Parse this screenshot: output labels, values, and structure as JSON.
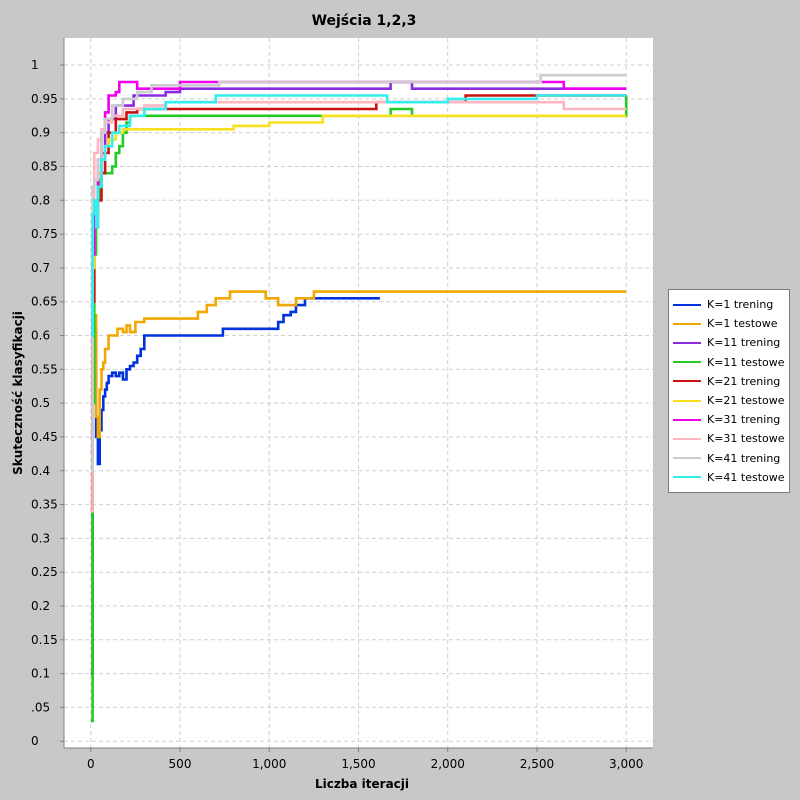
{
  "chart_data": {
    "type": "line",
    "title": "Wejścia 1,2,3",
    "xlabel": "Liczba iteracji",
    "ylabel": "Skuteczność klasyfikacji",
    "xlim": [
      -150,
      3150
    ],
    "ylim": [
      -0.01,
      1.04
    ],
    "x_ticks": [
      0,
      500,
      1000,
      1500,
      2000,
      2500,
      3000
    ],
    "x_tick_labels": [
      "0",
      "500",
      "1,000",
      "1,500",
      "2,000",
      "2,500",
      "3,000"
    ],
    "y_ticks": [
      0,
      0.05,
      0.1,
      0.15,
      0.2,
      0.25,
      0.3,
      0.35,
      0.4,
      0.45,
      0.5,
      0.55,
      0.6,
      0.65,
      0.7,
      0.75,
      0.8,
      0.85,
      0.9,
      0.95,
      1
    ],
    "y_tick_labels": [
      "0",
      ".05",
      "0.1",
      "0.15",
      "0.2",
      "0.25",
      "0.3",
      "0.35",
      "0.4",
      "0.45",
      "0.5",
      "0.55",
      "0.6",
      "0.65",
      "0.7",
      "0.75",
      "0.8",
      "0.85",
      "0.9",
      "0.95",
      "1"
    ],
    "grid": true,
    "legend_position": "right",
    "series": [
      {
        "name": "K=1 trening",
        "color": "#0033dd",
        "x": [
          0,
          10,
          20,
          30,
          40,
          50,
          60,
          70,
          80,
          90,
          100,
          120,
          140,
          160,
          180,
          200,
          220,
          240,
          260,
          280,
          300,
          320,
          740,
          1050,
          1080,
          1120,
          1150,
          1200,
          1250,
          1620
        ],
        "y": [
          0.1,
          0.55,
          0.61,
          0.45,
          0.41,
          0.46,
          0.49,
          0.51,
          0.52,
          0.53,
          0.54,
          0.545,
          0.54,
          0.545,
          0.535,
          0.55,
          0.555,
          0.56,
          0.57,
          0.58,
          0.6,
          0.6,
          0.61,
          0.62,
          0.63,
          0.635,
          0.645,
          0.655,
          0.655,
          0.655
        ]
      },
      {
        "name": "K=1 testowe",
        "color": "#f0a800",
        "x": [
          0,
          10,
          20,
          30,
          40,
          50,
          60,
          70,
          80,
          100,
          120,
          150,
          180,
          200,
          220,
          250,
          300,
          600,
          650,
          700,
          780,
          980,
          1050,
          1100,
          1150,
          1250,
          1300,
          3000
        ],
        "y": [
          0.35,
          0.55,
          0.63,
          0.48,
          0.45,
          0.52,
          0.55,
          0.56,
          0.58,
          0.6,
          0.6,
          0.61,
          0.605,
          0.615,
          0.605,
          0.62,
          0.625,
          0.635,
          0.645,
          0.655,
          0.665,
          0.655,
          0.645,
          0.645,
          0.655,
          0.665,
          0.665,
          0.665
        ]
      },
      {
        "name": "K=11 trening",
        "color": "#8a2be2",
        "x": [
          0,
          10,
          20,
          40,
          60,
          80,
          100,
          140,
          180,
          240,
          300,
          420,
          500,
          720,
          1680,
          1800,
          2000,
          2500,
          3000
        ],
        "y": [
          0.45,
          0.7,
          0.8,
          0.84,
          0.87,
          0.9,
          0.92,
          0.94,
          0.94,
          0.955,
          0.955,
          0.96,
          0.965,
          0.965,
          0.975,
          0.965,
          0.965,
          0.965,
          0.965
        ]
      },
      {
        "name": "K=11 testowe",
        "color": "#22cc22",
        "x": [
          0,
          10,
          20,
          30,
          40,
          50,
          60,
          80,
          100,
          120,
          140,
          160,
          180,
          200,
          220,
          300,
          400,
          1680,
          1800,
          1900,
          3000
        ],
        "y": [
          0.03,
          0.5,
          0.72,
          0.78,
          0.8,
          0.83,
          0.84,
          0.84,
          0.84,
          0.85,
          0.87,
          0.88,
          0.9,
          0.915,
          0.925,
          0.925,
          0.925,
          0.935,
          0.925,
          0.925,
          0.955
        ]
      },
      {
        "name": "K=21 trening",
        "color": "#cc1111",
        "x": [
          0,
          10,
          20,
          40,
          60,
          80,
          100,
          140,
          200,
          260,
          320,
          1300,
          1600,
          1800,
          2100,
          2500,
          3000
        ],
        "y": [
          0.34,
          0.65,
          0.76,
          0.8,
          0.84,
          0.87,
          0.9,
          0.92,
          0.93,
          0.935,
          0.935,
          0.935,
          0.945,
          0.945,
          0.955,
          0.955,
          0.955
        ]
      },
      {
        "name": "K=21 testowe",
        "color": "#f8e020",
        "x": [
          0,
          10,
          20,
          40,
          60,
          80,
          100,
          140,
          180,
          600,
          800,
          1000,
          1300,
          1680,
          3000
        ],
        "y": [
          0.41,
          0.7,
          0.78,
          0.84,
          0.86,
          0.88,
          0.89,
          0.9,
          0.905,
          0.905,
          0.91,
          0.915,
          0.925,
          0.925,
          0.925
        ]
      },
      {
        "name": "K=31 trening",
        "color": "#ee00ee",
        "x": [
          0,
          10,
          20,
          40,
          60,
          80,
          100,
          140,
          160,
          200,
          260,
          330,
          500,
          720,
          1300,
          1680,
          2100,
          2650,
          3000
        ],
        "y": [
          0.43,
          0.72,
          0.8,
          0.86,
          0.9,
          0.93,
          0.955,
          0.96,
          0.975,
          0.975,
          0.965,
          0.965,
          0.975,
          0.975,
          0.975,
          0.975,
          0.975,
          0.965,
          0.965
        ]
      },
      {
        "name": "K=31 testowe",
        "color": "#ffb6c1",
        "x": [
          0,
          10,
          20,
          40,
          60,
          80,
          120,
          180,
          240,
          300,
          420,
          800,
          1300,
          1650,
          2650,
          3000
        ],
        "y": [
          0.34,
          0.78,
          0.87,
          0.89,
          0.905,
          0.915,
          0.925,
          0.935,
          0.935,
          0.94,
          0.945,
          0.945,
          0.945,
          0.945,
          0.935,
          0.935
        ]
      },
      {
        "name": "K=41 trening",
        "color": "#cccccc",
        "x": [
          0,
          10,
          20,
          40,
          60,
          80,
          120,
          180,
          260,
          340,
          720,
          1660,
          2200,
          2520,
          3000
        ],
        "y": [
          0.4,
          0.82,
          0.83,
          0.86,
          0.9,
          0.92,
          0.94,
          0.95,
          0.96,
          0.97,
          0.975,
          0.975,
          0.975,
          0.985,
          0.985
        ]
      },
      {
        "name": "K=41 testowe",
        "color": "#33eeee",
        "x": [
          0,
          10,
          20,
          30,
          40,
          60,
          80,
          120,
          160,
          220,
          300,
          420,
          700,
          1660,
          2000,
          2500,
          3000
        ],
        "y": [
          0.6,
          0.78,
          0.8,
          0.76,
          0.82,
          0.86,
          0.88,
          0.9,
          0.91,
          0.925,
          0.935,
          0.945,
          0.955,
          0.945,
          0.95,
          0.955,
          0.955
        ]
      }
    ]
  }
}
